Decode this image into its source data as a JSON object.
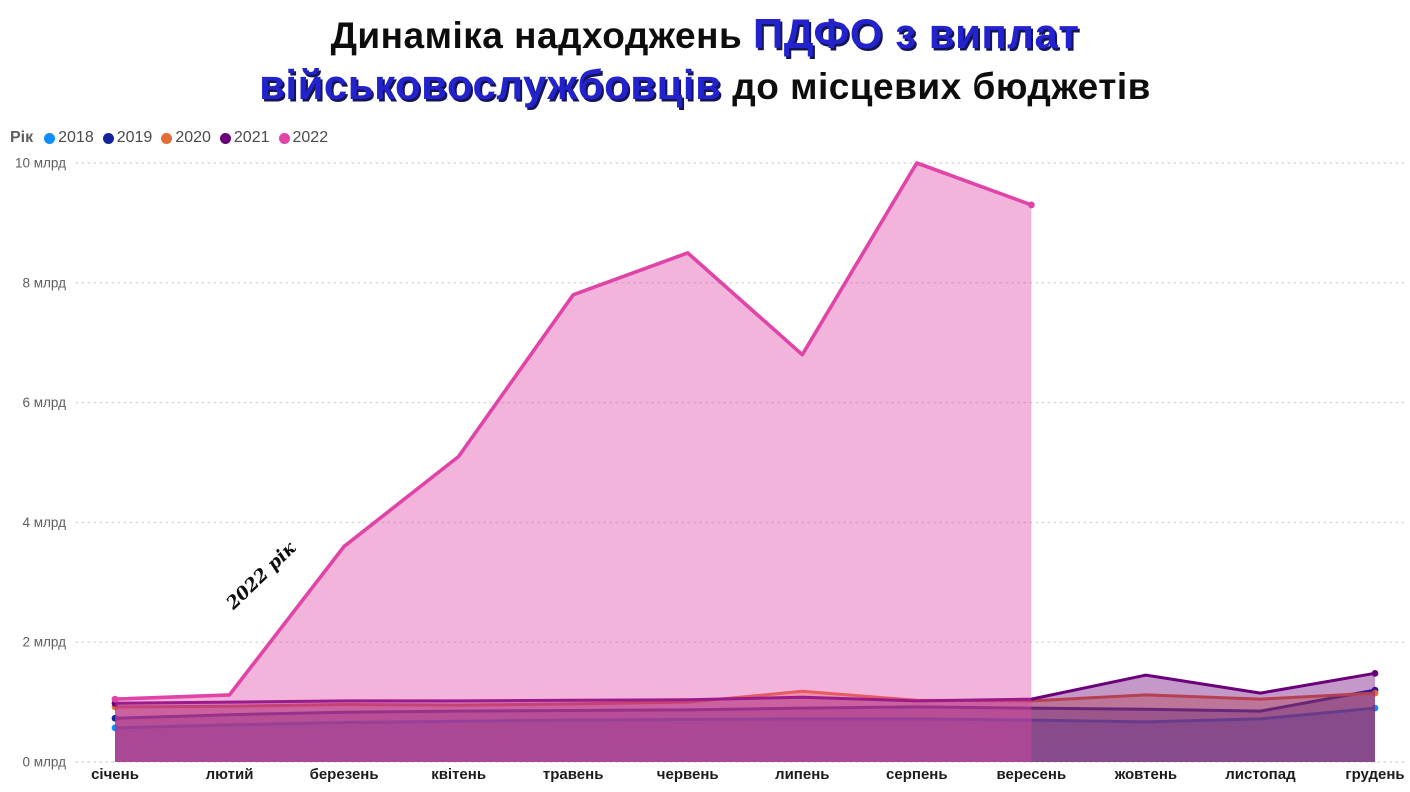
{
  "title": {
    "line1_black": "Динаміка надходжень ",
    "line1_blue": "ПДФО з виплат",
    "line2_blue": "військовослужбовців",
    "line2_black": " до місцевих бюджетів"
  },
  "legend": {
    "field_label": "Рік",
    "items": [
      {
        "label": "2018",
        "color": "#118DFF"
      },
      {
        "label": "2019",
        "color": "#12239E"
      },
      {
        "label": "2020",
        "color": "#E66C37"
      },
      {
        "label": "2021",
        "color": "#6B007B"
      },
      {
        "label": "2022",
        "color": "#E044A7"
      }
    ]
  },
  "annotation": {
    "text": "2022 рік"
  },
  "chart_data": {
    "type": "area",
    "title": "Динаміка надходжень ПДФО з виплат військовослужбовців до місцевих бюджетів",
    "unit": "млрд",
    "categories": [
      "січень",
      "лютий",
      "березень",
      "квітень",
      "травень",
      "червень",
      "липень",
      "серпень",
      "вересень",
      "жовтень",
      "листопад",
      "грудень"
    ],
    "yticks": {
      "values": [
        0,
        2,
        4,
        6,
        8,
        10
      ],
      "labels": [
        "0 млрд",
        "2 млрд",
        "4 млрд",
        "6 млрд",
        "8 млрд",
        "10 млрд"
      ]
    },
    "ylim": [
      0,
      10
    ],
    "grid": "dotted-horizontal",
    "legend_position": "top-left",
    "fill_opacity": 0.4,
    "series": [
      {
        "name": "2018",
        "color": "#118DFF",
        "values": [
          0.57,
          0.62,
          0.66,
          0.68,
          0.7,
          0.71,
          0.72,
          0.72,
          0.7,
          0.67,
          0.72,
          0.9
        ]
      },
      {
        "name": "2019",
        "color": "#12239E",
        "values": [
          0.73,
          0.79,
          0.83,
          0.85,
          0.86,
          0.87,
          0.9,
          0.92,
          0.9,
          0.88,
          0.85,
          1.2
        ]
      },
      {
        "name": "2020",
        "color": "#E66C37",
        "values": [
          0.92,
          0.93,
          0.96,
          0.95,
          0.97,
          1.0,
          1.18,
          1.03,
          1.02,
          1.12,
          1.05,
          1.15
        ]
      },
      {
        "name": "2021",
        "color": "#6B007B",
        "values": [
          0.98,
          1.0,
          1.02,
          1.02,
          1.03,
          1.04,
          1.08,
          1.02,
          1.05,
          1.45,
          1.15,
          1.48
        ]
      },
      {
        "name": "2022",
        "color": "#E044A7",
        "values": [
          1.05,
          1.12,
          3.6,
          5.1,
          7.8,
          8.5,
          6.8,
          10.0,
          9.3,
          null,
          null,
          null
        ]
      }
    ]
  }
}
